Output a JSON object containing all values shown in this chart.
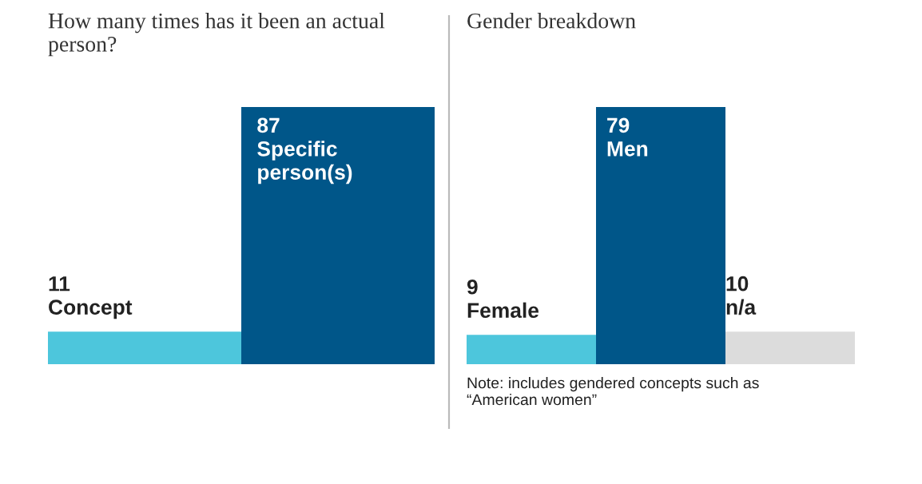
{
  "chart_data": [
    {
      "type": "bar",
      "title": "How many times has it been an actual person?",
      "categories": [
        "Concept",
        "Specific person(s)"
      ],
      "values": [
        11,
        87
      ],
      "colors": [
        "#4dc6dc",
        "#005689"
      ],
      "data_labels": true,
      "tick_labels": false
    },
    {
      "type": "bar",
      "title": "Gender breakdown",
      "categories": [
        "Female",
        "Men",
        "n/a"
      ],
      "values": [
        9,
        79,
        10
      ],
      "colors": [
        "#4dc6dc",
        "#005689",
        "#dcdcdc"
      ],
      "data_labels": true,
      "tick_labels": false,
      "annotations": [
        "Note: includes gendered concepts such as “American women”"
      ]
    }
  ]
}
